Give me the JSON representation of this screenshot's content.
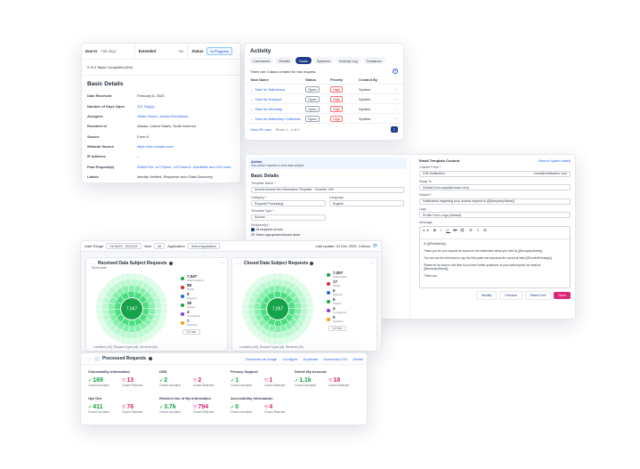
{
  "details": {
    "due_in_label": "Due In",
    "due_in_value": "<86 days",
    "extended_label": "Extended",
    "extended_value": "No",
    "status_label": "Status",
    "status_value": "In Progress",
    "tasks_completed": "0 of 4 Tasks Completed (0%)",
    "section_title": "Basic Details",
    "fields": [
      {
        "key": "Date Received",
        "value": "February 6, 2025"
      },
      {
        "key": "Number of Days Open",
        "value": "321 Day(s)"
      },
      {
        "key": "Assignee",
        "value": "Julian Gama, Jordan Donaldson"
      },
      {
        "key": "Resident of",
        "value": "Alaska, United States, North America"
      },
      {
        "key": "Source",
        "value": "Form A"
      },
      {
        "key": "Website Source",
        "value": "https://lmn.exsaer.com/"
      },
      {
        "key": "IP Address",
        "value": "--"
      },
      {
        "key": "Past Request(s)",
        "value": "5382b764...a771f5a4...1971ecfe3...a5e3b8fe and 232 more"
      },
      {
        "key": "Labels",
        "value": "Identity Verified, Response from Data Discovery"
      }
    ]
  },
  "activity": {
    "title": "Activity",
    "tabs": [
      "Comments",
      "Details",
      "Tasks",
      "Systems",
      "Activity Log",
      "Guidance"
    ],
    "active_tab": "Tasks",
    "summary": "There are 4 tasks created for this request.",
    "columns": [
      "Task Name",
      "Status",
      "Priority",
      "Created By"
    ],
    "rows": [
      {
        "name": "Task for Salesforce",
        "status": "Open",
        "priority": "High",
        "created_by": "System"
      },
      {
        "name": "Task for Hubspot",
        "status": "Open",
        "priority": "High",
        "created_by": "System"
      },
      {
        "name": "Task for Workday",
        "status": "Open",
        "priority": "High",
        "created_by": "System"
      },
      {
        "name": "Task for Mailchimp California",
        "status": "Open",
        "priority": "High",
        "created_by": "System"
      }
    ],
    "pagination": "View 25 rows",
    "showing": "Show 1 - 4 of 4",
    "page": "1"
  },
  "template": {
    "notice_title": "Action",
    "notice_text": "Gen action requires a view data subject",
    "basic_details": "Basic Details",
    "template_name_label": "Template Name *",
    "template_name_value": "Access Access the Information Template - Youtube: 269",
    "category_label": "Category *",
    "category_value": "Request Processing",
    "language_label": "Language",
    "language_value": "English",
    "subtype_label": "Template Type *",
    "subtype_value": "Access",
    "radio_label": "Recipient(s) *",
    "radio_opt1": "All recipients at time",
    "radio_opt2": "Select appropriate/relevant ticket",
    "email_title": "Email Template Content",
    "email_link": "Reset to System default",
    "custom_from_label": "Custom From *",
    "custom_from_value": "IHN Notification",
    "custom_from_email": "email@notification.com",
    "reply_to_label": "Reply To",
    "reply_to_value": "Default (hrm-reply@exsaer.com)",
    "subject_label": "Subject *",
    "subject_value": "Notification regarding your access request to {{$companyName}}",
    "logo_label": "Logo",
    "logo_value": "Profile Form Logo (Default)",
    "message_label": "Message",
    "msg_lines": [
      "Hi {{$FirstName}},",
      "Thank you for your request for access to the information about you held by {{$companyName}}.",
      "You can use the link below to log into this portal and download the personal data {{$ContentPackage}}.",
      "Please let us know in due time if you have further questions on your data request via email at {{$companyName}}.",
      "Thank you."
    ],
    "buttons": [
      "Modify",
      "Preview",
      "Reset Cell",
      "Save"
    ]
  },
  "dashboard": {
    "date_range_label": "Date Range",
    "date_range_value": "01/16/23 - 02/21/23",
    "view_label": "View",
    "view_value": "All",
    "application_label": "Application",
    "application_value": "Select Application",
    "last_update": "Last update: 31 Dec 2023, 3:00am",
    "received_title": "Received Data Subject Requests",
    "received_sub": "World-wide",
    "received_total": "7,047",
    "received_legend": [
      {
        "value": "7,047",
        "label": "Total received",
        "color": "#16a34a"
      },
      {
        "value": "88",
        "label": "Today",
        "color": "#dc2626"
      },
      {
        "value": "9",
        "label": "Opened",
        "color": "#2563eb"
      },
      {
        "value": "38",
        "label": "Closed",
        "color": "#16a34a"
      },
      {
        "value": "4",
        "label": "In progress",
        "color": "#7c3aed"
      },
      {
        "value": "7",
        "label": "Overdue",
        "color": "#f59e0b"
      }
    ],
    "received_select": "1.2 mo",
    "received_foot": "Locations (US), Request Types (all), Received (All)",
    "closed_title": "Closed Data Subject Requests",
    "closed_total": "7,057",
    "closed_legend": [
      {
        "value": "7,057",
        "label": "Total closed",
        "color": "#16a34a"
      },
      {
        "value": "17",
        "label": "Today",
        "color": "#dc2626"
      },
      {
        "value": "6",
        "label": "Opened",
        "color": "#2563eb"
      },
      {
        "value": "6",
        "label": "Closed",
        "color": "#16a34a"
      },
      {
        "value": "4",
        "label": "In progress",
        "color": "#7c3aed"
      },
      {
        "value": "0",
        "label": "Overdue",
        "color": "#f59e0b"
      }
    ],
    "closed_select": "1.2 mo",
    "closed_foot": "Locations (US), Request Types (all), Received (All)"
  },
  "processed": {
    "title": "Processed Requests",
    "actions": [
      "Download as Image",
      "Configure",
      "Duplicate",
      "Download CSV",
      "Delete"
    ],
    "metrics": [
      {
        "title": "Vulnerability Information",
        "good": "169",
        "good_label": "Closed Accepted",
        "bad": "13",
        "bad_label": "Closed Rejected"
      },
      {
        "title": "DSR",
        "good": "2",
        "good_label": "Closed Accepted",
        "bad": "2",
        "bad_label": "Closed Rejected"
      },
      {
        "title": "Privacy Support",
        "good": "1",
        "good_label": "Closed Accepted",
        "bad": "1",
        "bad_label": "Closed Rejected"
      },
      {
        "title": "Delete My Account",
        "good": "1.1k",
        "good_label": "Closed Accepted",
        "bad": "18",
        "bad_label": "Closed Rejected"
      },
      {
        "title": "Opt Out",
        "good": "411",
        "good_label": "Closed Accepted",
        "bad": "76",
        "bad_label": "Closed Rejected"
      },
      {
        "title": "Restrict Use of My Information",
        "good": "3.7k",
        "good_label": "Closed Accepted",
        "bad": "794",
        "bad_label": "Closed Rejected"
      },
      {
        "title": "Accessibility Information",
        "good": "0",
        "good_label": "Closed Accepted",
        "bad": "4",
        "bad_label": "Closed Rejected"
      }
    ]
  }
}
